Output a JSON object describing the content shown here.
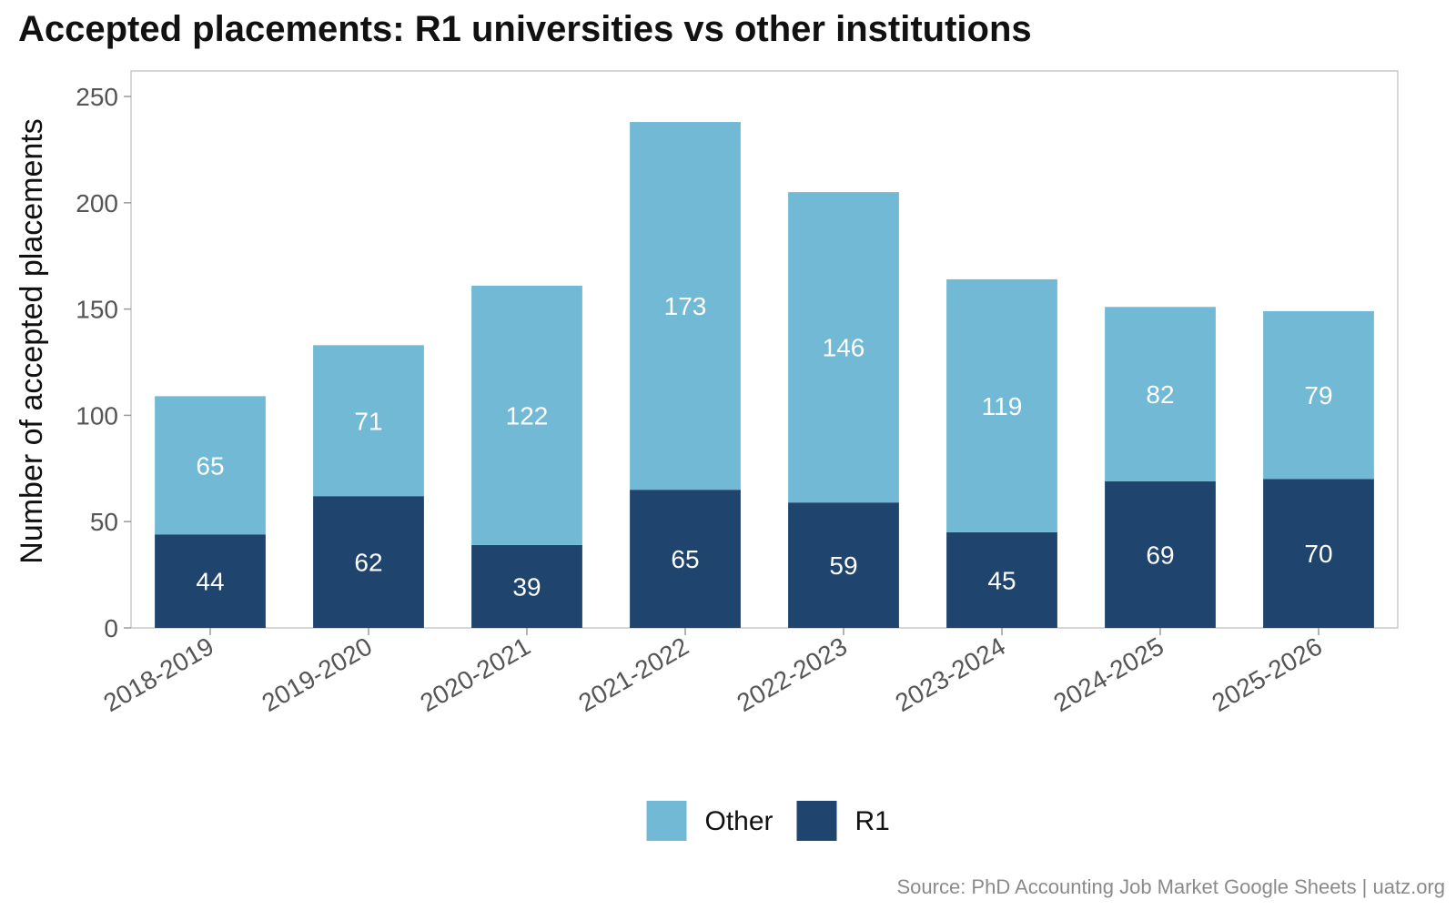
{
  "chart_data": {
    "type": "bar",
    "stacked": true,
    "title": "Accepted placements: R1 universities vs other institutions",
    "xlabel": "",
    "ylabel": "Number of accepted placements",
    "categories": [
      "2018-2019",
      "2019-2020",
      "2020-2021",
      "2021-2022",
      "2022-2023",
      "2023-2024",
      "2024-2025",
      "2025-2026"
    ],
    "series": [
      {
        "name": "R1",
        "color": "#1f456e",
        "values": [
          44,
          62,
          39,
          65,
          59,
          45,
          69,
          70
        ]
      },
      {
        "name": "Other",
        "color": "#72b9d5",
        "values": [
          65,
          71,
          122,
          173,
          146,
          119,
          82,
          79
        ]
      }
    ],
    "ylim": [
      0,
      262
    ],
    "yticks": [
      0,
      50,
      100,
      150,
      200,
      250
    ],
    "grid": false,
    "legend": {
      "position": "bottom-center",
      "order": [
        "Other",
        "R1"
      ]
    },
    "data_labels": true
  },
  "source": "Source: PhD Accounting Job Market Google Sheets | uatz.org"
}
